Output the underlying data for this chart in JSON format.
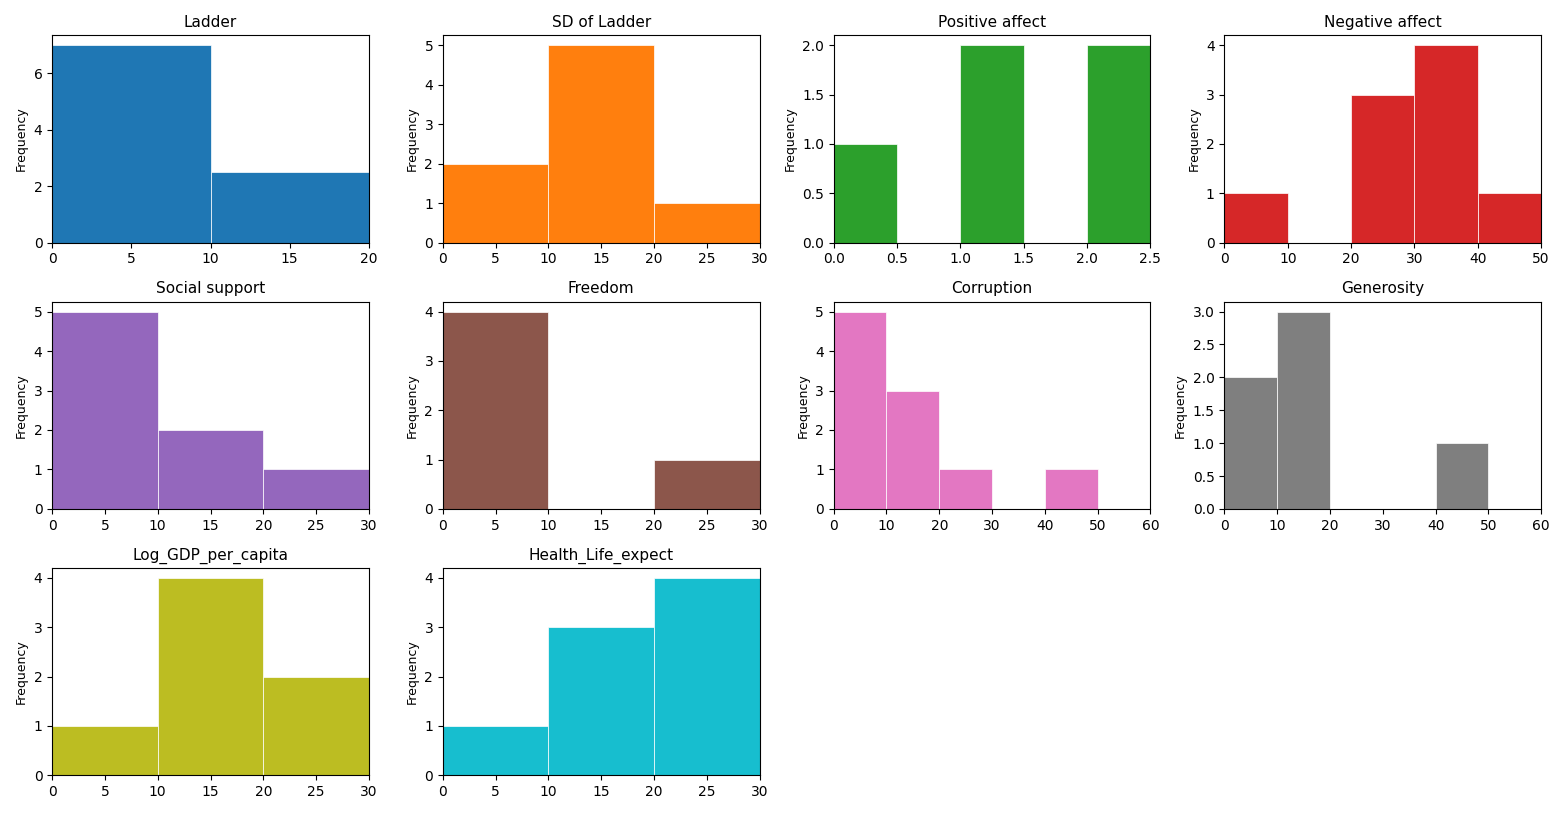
{
  "subplots": [
    {
      "title": "Ladder",
      "color": "#1f77b4",
      "bin_edges": [
        0,
        10,
        20
      ],
      "counts": [
        7,
        2.5
      ]
    },
    {
      "title": "SD of Ladder",
      "color": "#ff7f0e",
      "bin_edges": [
        0,
        10,
        20,
        30
      ],
      "counts": [
        2,
        5,
        1
      ]
    },
    {
      "title": "Positive affect",
      "color": "#2ca02c",
      "bin_edges": [
        0.0,
        0.5,
        1.0,
        1.5,
        2.0,
        2.5
      ],
      "counts": [
        1.0,
        0.0,
        2.0,
        0.0,
        2.0
      ]
    },
    {
      "title": "Negative affect",
      "color": "#d62728",
      "bin_edges": [
        0,
        10,
        20,
        30,
        40,
        50
      ],
      "counts": [
        1,
        0,
        3,
        4,
        1
      ]
    },
    {
      "title": "Social support",
      "color": "#9467bd",
      "bin_edges": [
        0,
        10,
        20,
        30
      ],
      "counts": [
        5,
        2,
        1
      ]
    },
    {
      "title": "Freedom",
      "color": "#8c564b",
      "bin_edges": [
        0,
        10,
        20,
        30
      ],
      "counts": [
        4,
        0,
        1
      ]
    },
    {
      "title": "Corruption",
      "color": "#e377c2",
      "bin_edges": [
        0,
        10,
        20,
        30,
        40,
        50,
        60
      ],
      "counts": [
        5,
        3,
        1,
        0,
        1,
        0
      ]
    },
    {
      "title": "Generosity",
      "color": "#7f7f7f",
      "bin_edges": [
        0,
        10,
        20,
        30,
        40,
        50,
        60
      ],
      "counts": [
        2,
        3,
        0,
        0,
        1,
        0
      ]
    },
    {
      "title": "Log_GDP_per_capita",
      "color": "#bcbd22",
      "bin_edges": [
        0,
        10,
        20,
        30
      ],
      "counts": [
        1,
        4,
        2
      ]
    },
    {
      "title": "Health_Life_expect",
      "color": "#17becf",
      "bin_edges": [
        0,
        10,
        20,
        30
      ],
      "counts": [
        1,
        3,
        4
      ]
    }
  ],
  "nrows": 3,
  "ncols": 4,
  "figsize": [
    15.65,
    8.14
  ],
  "dpi": 100,
  "ylabel": "Frequency"
}
